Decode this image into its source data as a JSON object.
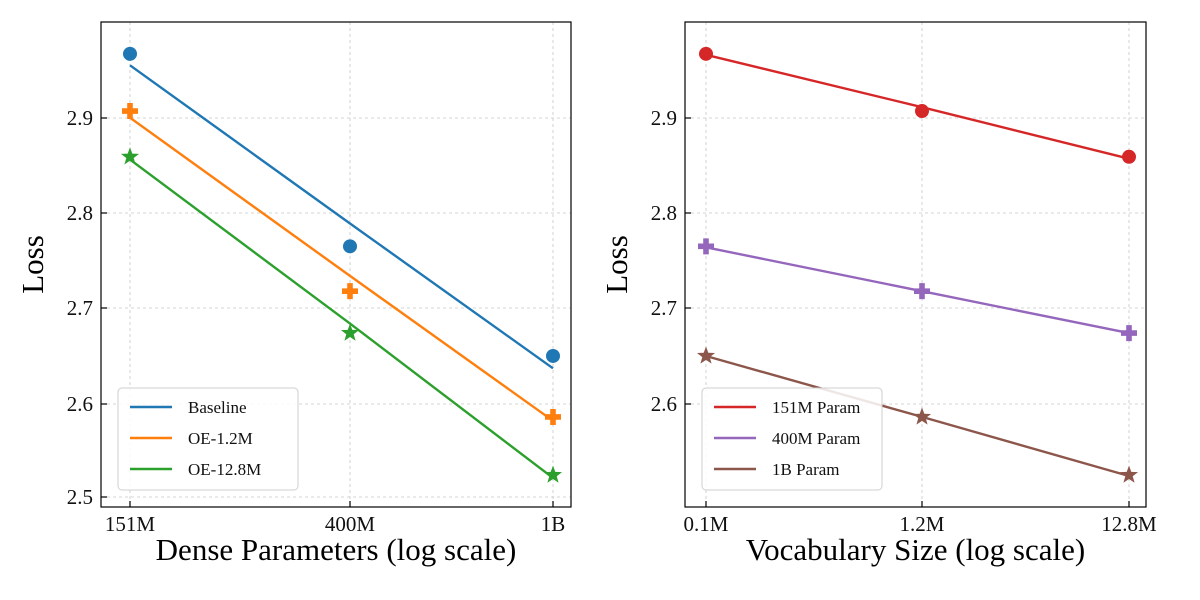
{
  "chart_data": [
    {
      "type": "line",
      "xlabel": "Dense Parameters (log scale)",
      "ylabel": "Loss",
      "x_scale": "log",
      "categories": [
        "151M",
        "400M",
        "1B"
      ],
      "x": [
        151,
        400,
        1000
      ],
      "ylim": [
        2.5,
        2.98
      ],
      "yticks": [
        "2.5",
        "2.6",
        "2.7",
        "2.8",
        "2.9"
      ],
      "grid": true,
      "legend_position": "lower-left",
      "series": [
        {
          "name": "Baseline",
          "marker": "circle",
          "color": "#1f77b4",
          "values": [
            2.965,
            2.763,
            2.648
          ],
          "fit": [
            2.953,
            2.787,
            2.635
          ]
        },
        {
          "name": "OE-1.2M",
          "marker": "plus",
          "color": "#ff7f0e",
          "values": [
            2.905,
            2.716,
            2.584
          ],
          "fit": [
            2.898,
            2.732,
            2.58
          ]
        },
        {
          "name": "OE-12.8M",
          "marker": "star",
          "color": "#2ca02c",
          "values": [
            2.857,
            2.672,
            2.523
          ],
          "fit": [
            2.854,
            2.682,
            2.52
          ]
        }
      ]
    },
    {
      "type": "line",
      "xlabel": "Vocabulary Size (log scale)",
      "ylabel": "Loss",
      "x_scale": "log",
      "categories": [
        "0.1M",
        "1.2M",
        "12.8M"
      ],
      "x": [
        0.1,
        1.2,
        12.8
      ],
      "ylim": [
        2.5,
        2.98
      ],
      "yticks": [
        "2.6",
        "2.7",
        "2.8",
        "2.9"
      ],
      "grid": true,
      "legend_position": "lower-left",
      "series": [
        {
          "name": "151M Param",
          "marker": "circle",
          "color": "#d62728",
          "values": [
            2.965,
            2.905,
            2.857
          ],
          "fit": [
            2.964,
            2.909,
            2.855
          ]
        },
        {
          "name": "400M Param",
          "marker": "plus",
          "color": "#9467bd",
          "values": [
            2.763,
            2.716,
            2.672
          ],
          "fit": [
            2.762,
            2.716,
            2.672
          ]
        },
        {
          "name": "1B Param",
          "marker": "star",
          "color": "#8c564b",
          "values": [
            2.648,
            2.584,
            2.523
          ],
          "fit": [
            2.648,
            2.584,
            2.522
          ]
        }
      ]
    }
  ]
}
